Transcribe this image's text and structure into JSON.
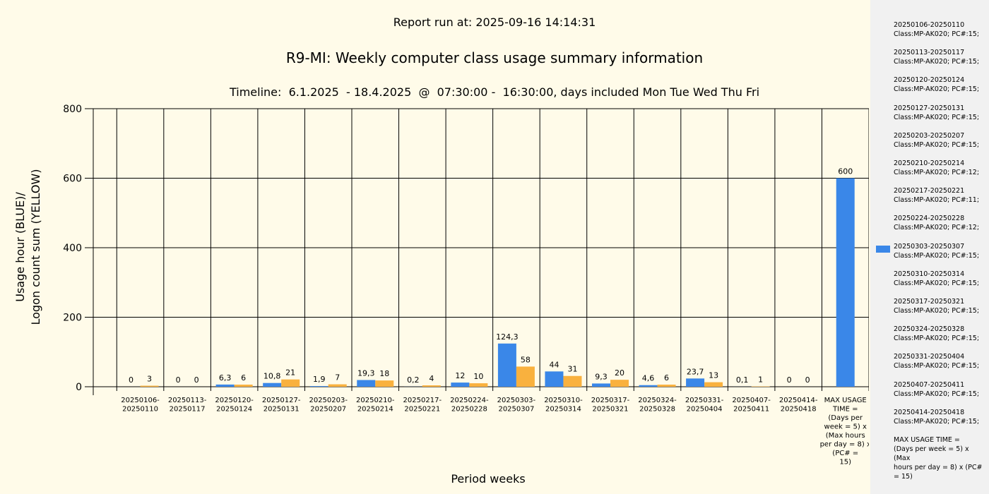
{
  "header": {
    "report_run": "Report run at: 2025-09-16 14:14:31",
    "title": "R9-MI: Weekly computer class usage summary information",
    "subtitle": "Timeline:  6.1.2025  - 18.4.2025  @  07:30:00 -  16:30:00, days included Mon Tue Wed Thu Fri"
  },
  "colors": {
    "blue": "#3a87e8",
    "yellow": "#f9b13e",
    "background": "#fffbe9",
    "legend_background": "#f1f1f1"
  },
  "chart_data": {
    "type": "bar",
    "xlabel": "Period weeks",
    "ylabel_lines": [
      "Usage hour (BLUE)/",
      "Logon count sum (YELLOW)"
    ],
    "ylim": [
      0,
      800
    ],
    "yticks": [
      0,
      200,
      400,
      600,
      800
    ],
    "grid": true,
    "categories": [
      [
        "20250106-",
        "20250110"
      ],
      [
        "20250113-",
        "20250117"
      ],
      [
        "20250120-",
        "20250124"
      ],
      [
        "20250127-",
        "20250131"
      ],
      [
        "20250203-",
        "20250207"
      ],
      [
        "20250210-",
        "20250214"
      ],
      [
        "20250217-",
        "20250221"
      ],
      [
        "20250224-",
        "20250228"
      ],
      [
        "20250303-",
        "20250307"
      ],
      [
        "20250310-",
        "20250314"
      ],
      [
        "20250317-",
        "20250321"
      ],
      [
        "20250324-",
        "20250328"
      ],
      [
        "20250331-",
        "20250404"
      ],
      [
        "20250407-",
        "20250411"
      ],
      [
        "20250414-",
        "20250418"
      ],
      [
        "MAX USAGE",
        "TIME =",
        "(Days per",
        "week = 5) x",
        "(Max hours",
        "per day = 8) x",
        "(PC# =",
        "15)"
      ]
    ],
    "series": [
      {
        "color": "blue",
        "values": [
          0,
          0,
          6.3,
          10.8,
          1.9,
          19.3,
          0.2,
          12,
          124.3,
          44,
          9.3,
          4.6,
          23.7,
          0.1,
          0,
          600
        ],
        "labels": [
          "0",
          "0",
          "6,3",
          "10,8",
          "1,9",
          "19,3",
          "0,2",
          "12",
          "124,3",
          "44",
          "9,3",
          "4,6",
          "23,7",
          "0,1",
          "0",
          "600"
        ]
      },
      {
        "color": "yellow",
        "values": [
          3,
          0,
          6,
          21,
          7,
          18,
          4,
          10,
          58,
          31,
          20,
          6,
          13,
          1,
          0,
          null
        ],
        "labels": [
          "3",
          "0",
          "6",
          "21",
          "7",
          "18",
          "4",
          "10",
          "58",
          "31",
          "20",
          "6",
          "13",
          "1",
          "0",
          null
        ]
      }
    ]
  },
  "legend": {
    "highlighted_index": 8,
    "items": [
      [
        "20250106-20250110",
        "Class:MP-AK020; PC#:15;"
      ],
      [
        "20250113-20250117",
        "Class:MP-AK020; PC#:15;"
      ],
      [
        "20250120-20250124",
        "Class:MP-AK020; PC#:15;"
      ],
      [
        "20250127-20250131",
        "Class:MP-AK020; PC#:15;"
      ],
      [
        "20250203-20250207",
        "Class:MP-AK020; PC#:15;"
      ],
      [
        "20250210-20250214",
        "Class:MP-AK020; PC#:12;"
      ],
      [
        "20250217-20250221",
        "Class:MP-AK020; PC#:11;"
      ],
      [
        "20250224-20250228",
        "Class:MP-AK020; PC#:12;"
      ],
      [
        "20250303-20250307",
        "Class:MP-AK020; PC#:15;"
      ],
      [
        "20250310-20250314",
        "Class:MP-AK020; PC#:15;"
      ],
      [
        "20250317-20250321",
        "Class:MP-AK020; PC#:15;"
      ],
      [
        "20250324-20250328",
        "Class:MP-AK020; PC#:15;"
      ],
      [
        "20250331-20250404",
        "Class:MP-AK020; PC#:15;"
      ],
      [
        "20250407-20250411",
        "Class:MP-AK020; PC#:15;"
      ],
      [
        "20250414-20250418",
        "Class:MP-AK020; PC#:15;"
      ],
      [
        "MAX USAGE TIME =",
        " (Days per week = 5) x (Max",
        "hours per day = 8) x (PC#",
        "= 15)"
      ]
    ]
  }
}
